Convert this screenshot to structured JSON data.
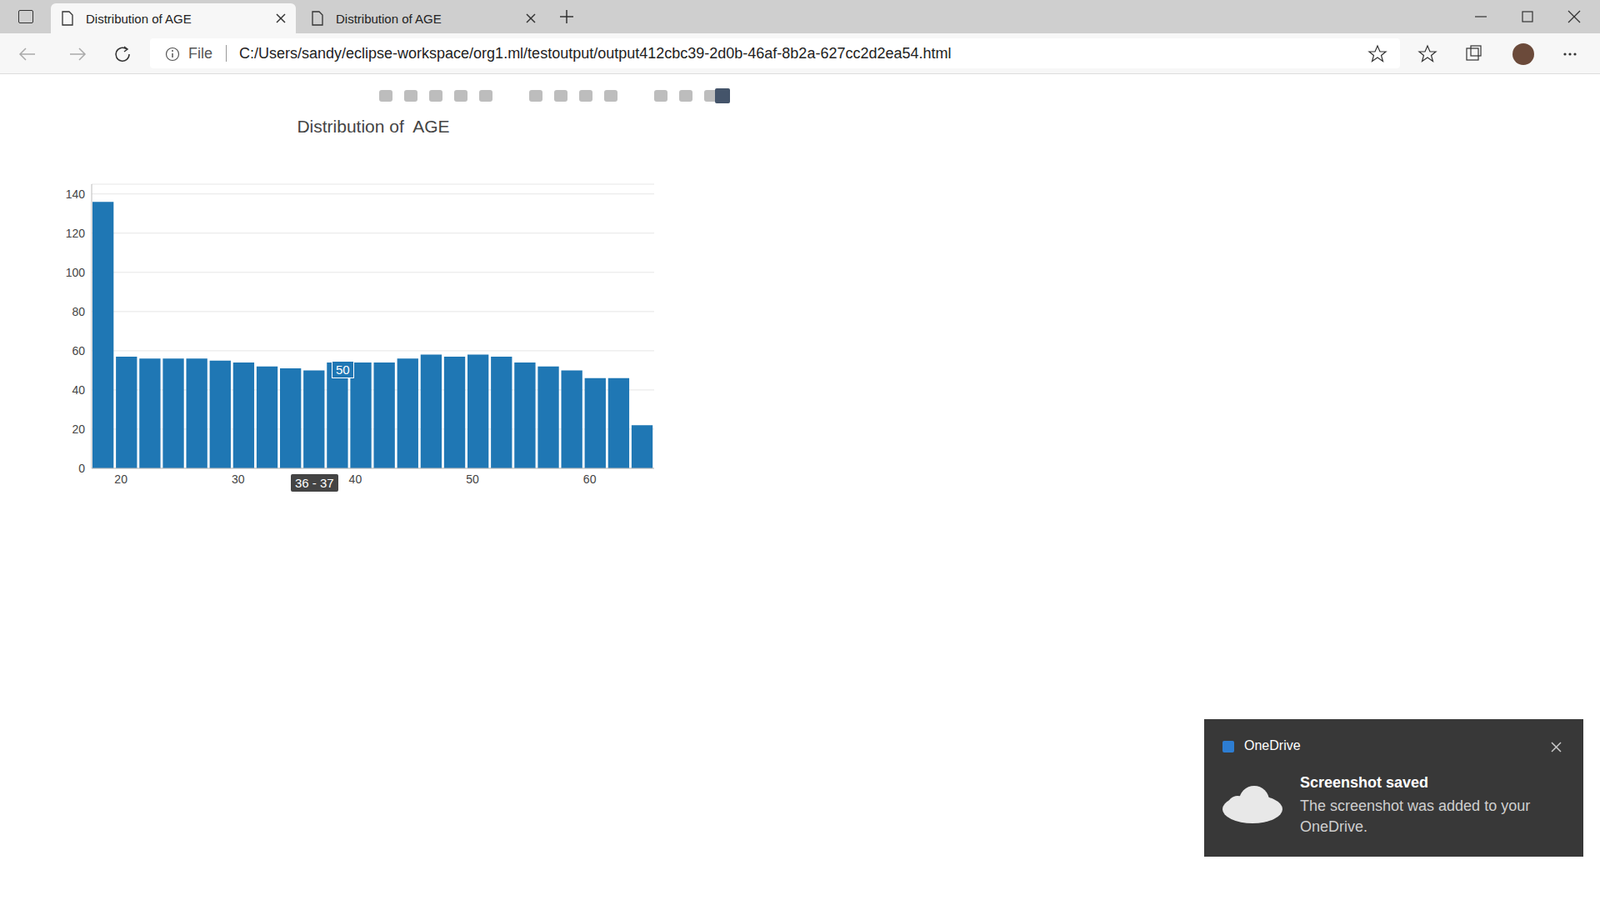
{
  "browser": {
    "tabs": [
      "Distribution of AGE",
      "Distribution of AGE"
    ],
    "address": {
      "scheme_label": "File",
      "url": "C:/Users/sandy/eclipse-workspace/org1.ml/testoutput/output412cbc39-2d0b-46af-8b2a-627cc2d2ea54.html"
    }
  },
  "chart_data": {
    "type": "histogram",
    "title": "Distribution of  AGE",
    "bins": [
      17.5,
      19.5,
      21.5,
      23.5,
      25.5,
      27.5,
      29.5,
      31.5,
      33.5,
      35.5,
      37.5,
      39.5,
      41.5,
      43.5,
      45.5,
      47.5,
      49.5,
      51.5,
      53.5,
      55.5,
      57.5,
      59.5,
      61.5,
      63.5,
      65.5
    ],
    "values": [
      136,
      57,
      56,
      56,
      56,
      55,
      54,
      52,
      51,
      50,
      54,
      54,
      54,
      56,
      58,
      57,
      58,
      57,
      54,
      52,
      50,
      46,
      46,
      22
    ],
    "color": "#1f77b4",
    "xlim": [
      17.5,
      65.5
    ],
    "xticks": [
      20,
      30,
      40,
      50,
      60
    ],
    "ylim": [
      0,
      145
    ],
    "yticks": [
      0,
      20,
      40,
      60,
      80,
      100,
      120,
      140
    ],
    "grid": true,
    "hover": {
      "bin_label": "36 - 37",
      "value": 50
    }
  },
  "notification": {
    "app": "OneDrive",
    "title": "Screenshot saved",
    "message": "The screenshot was added to your OneDrive."
  }
}
